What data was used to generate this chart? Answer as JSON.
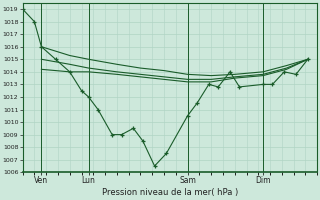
{
  "background_color": "#cde8db",
  "grid_color": "#b0d4c4",
  "line_color": "#1a5c2a",
  "marker_color": "#1a5c2a",
  "xlabel": "Pression niveau de la mer( hPa )",
  "ylim": [
    1006,
    1019.5
  ],
  "yticks": [
    1006,
    1007,
    1008,
    1009,
    1010,
    1011,
    1012,
    1013,
    1014,
    1015,
    1016,
    1017,
    1018,
    1019
  ],
  "xlim": [
    0,
    12.5
  ],
  "vlines_x": [
    0.8,
    2.8,
    7.0,
    10.2
  ],
  "vline_labels": [
    "Ven",
    "Lun",
    "Sam",
    "Dim"
  ],
  "series1_x": [
    0.0,
    0.5,
    0.8,
    1.4,
    2.0,
    2.5,
    2.8,
    3.2,
    3.8,
    4.2,
    4.7,
    5.1,
    5.6,
    6.1,
    7.0,
    7.4,
    7.9,
    8.3,
    8.8,
    9.2,
    10.2,
    10.6,
    11.1,
    11.6,
    12.1
  ],
  "series1_y": [
    1019,
    1018,
    1016,
    1015,
    1014,
    1012.5,
    1012,
    1011.0,
    1009.0,
    1009.0,
    1009.5,
    1008.5,
    1006.5,
    1007.5,
    1010.5,
    1011.5,
    1013.0,
    1012.8,
    1014.0,
    1012.8,
    1013.0,
    1013.0,
    1014.0,
    1013.8,
    1015.0
  ],
  "series2_x": [
    0.8,
    2.0,
    2.8,
    4.0,
    5.0,
    6.0,
    7.0,
    8.0,
    9.0,
    10.2,
    11.2,
    12.1
  ],
  "series2_y": [
    1016.0,
    1015.3,
    1015.0,
    1014.6,
    1014.3,
    1014.1,
    1013.8,
    1013.7,
    1013.8,
    1014.0,
    1014.5,
    1015.0
  ],
  "series3_x": [
    0.8,
    2.0,
    2.8,
    4.0,
    5.0,
    6.0,
    7.0,
    8.0,
    9.0,
    10.2,
    11.2,
    12.1
  ],
  "series3_y": [
    1015.0,
    1014.6,
    1014.3,
    1014.0,
    1013.8,
    1013.6,
    1013.4,
    1013.4,
    1013.6,
    1013.8,
    1014.3,
    1015.0
  ],
  "series4_x": [
    0.8,
    2.0,
    2.8,
    4.0,
    5.0,
    6.0,
    7.0,
    8.0,
    9.0,
    10.2,
    11.2,
    12.1
  ],
  "series4_y": [
    1014.2,
    1014.0,
    1014.0,
    1013.8,
    1013.6,
    1013.4,
    1013.2,
    1013.2,
    1013.5,
    1013.7,
    1014.2,
    1015.0
  ]
}
